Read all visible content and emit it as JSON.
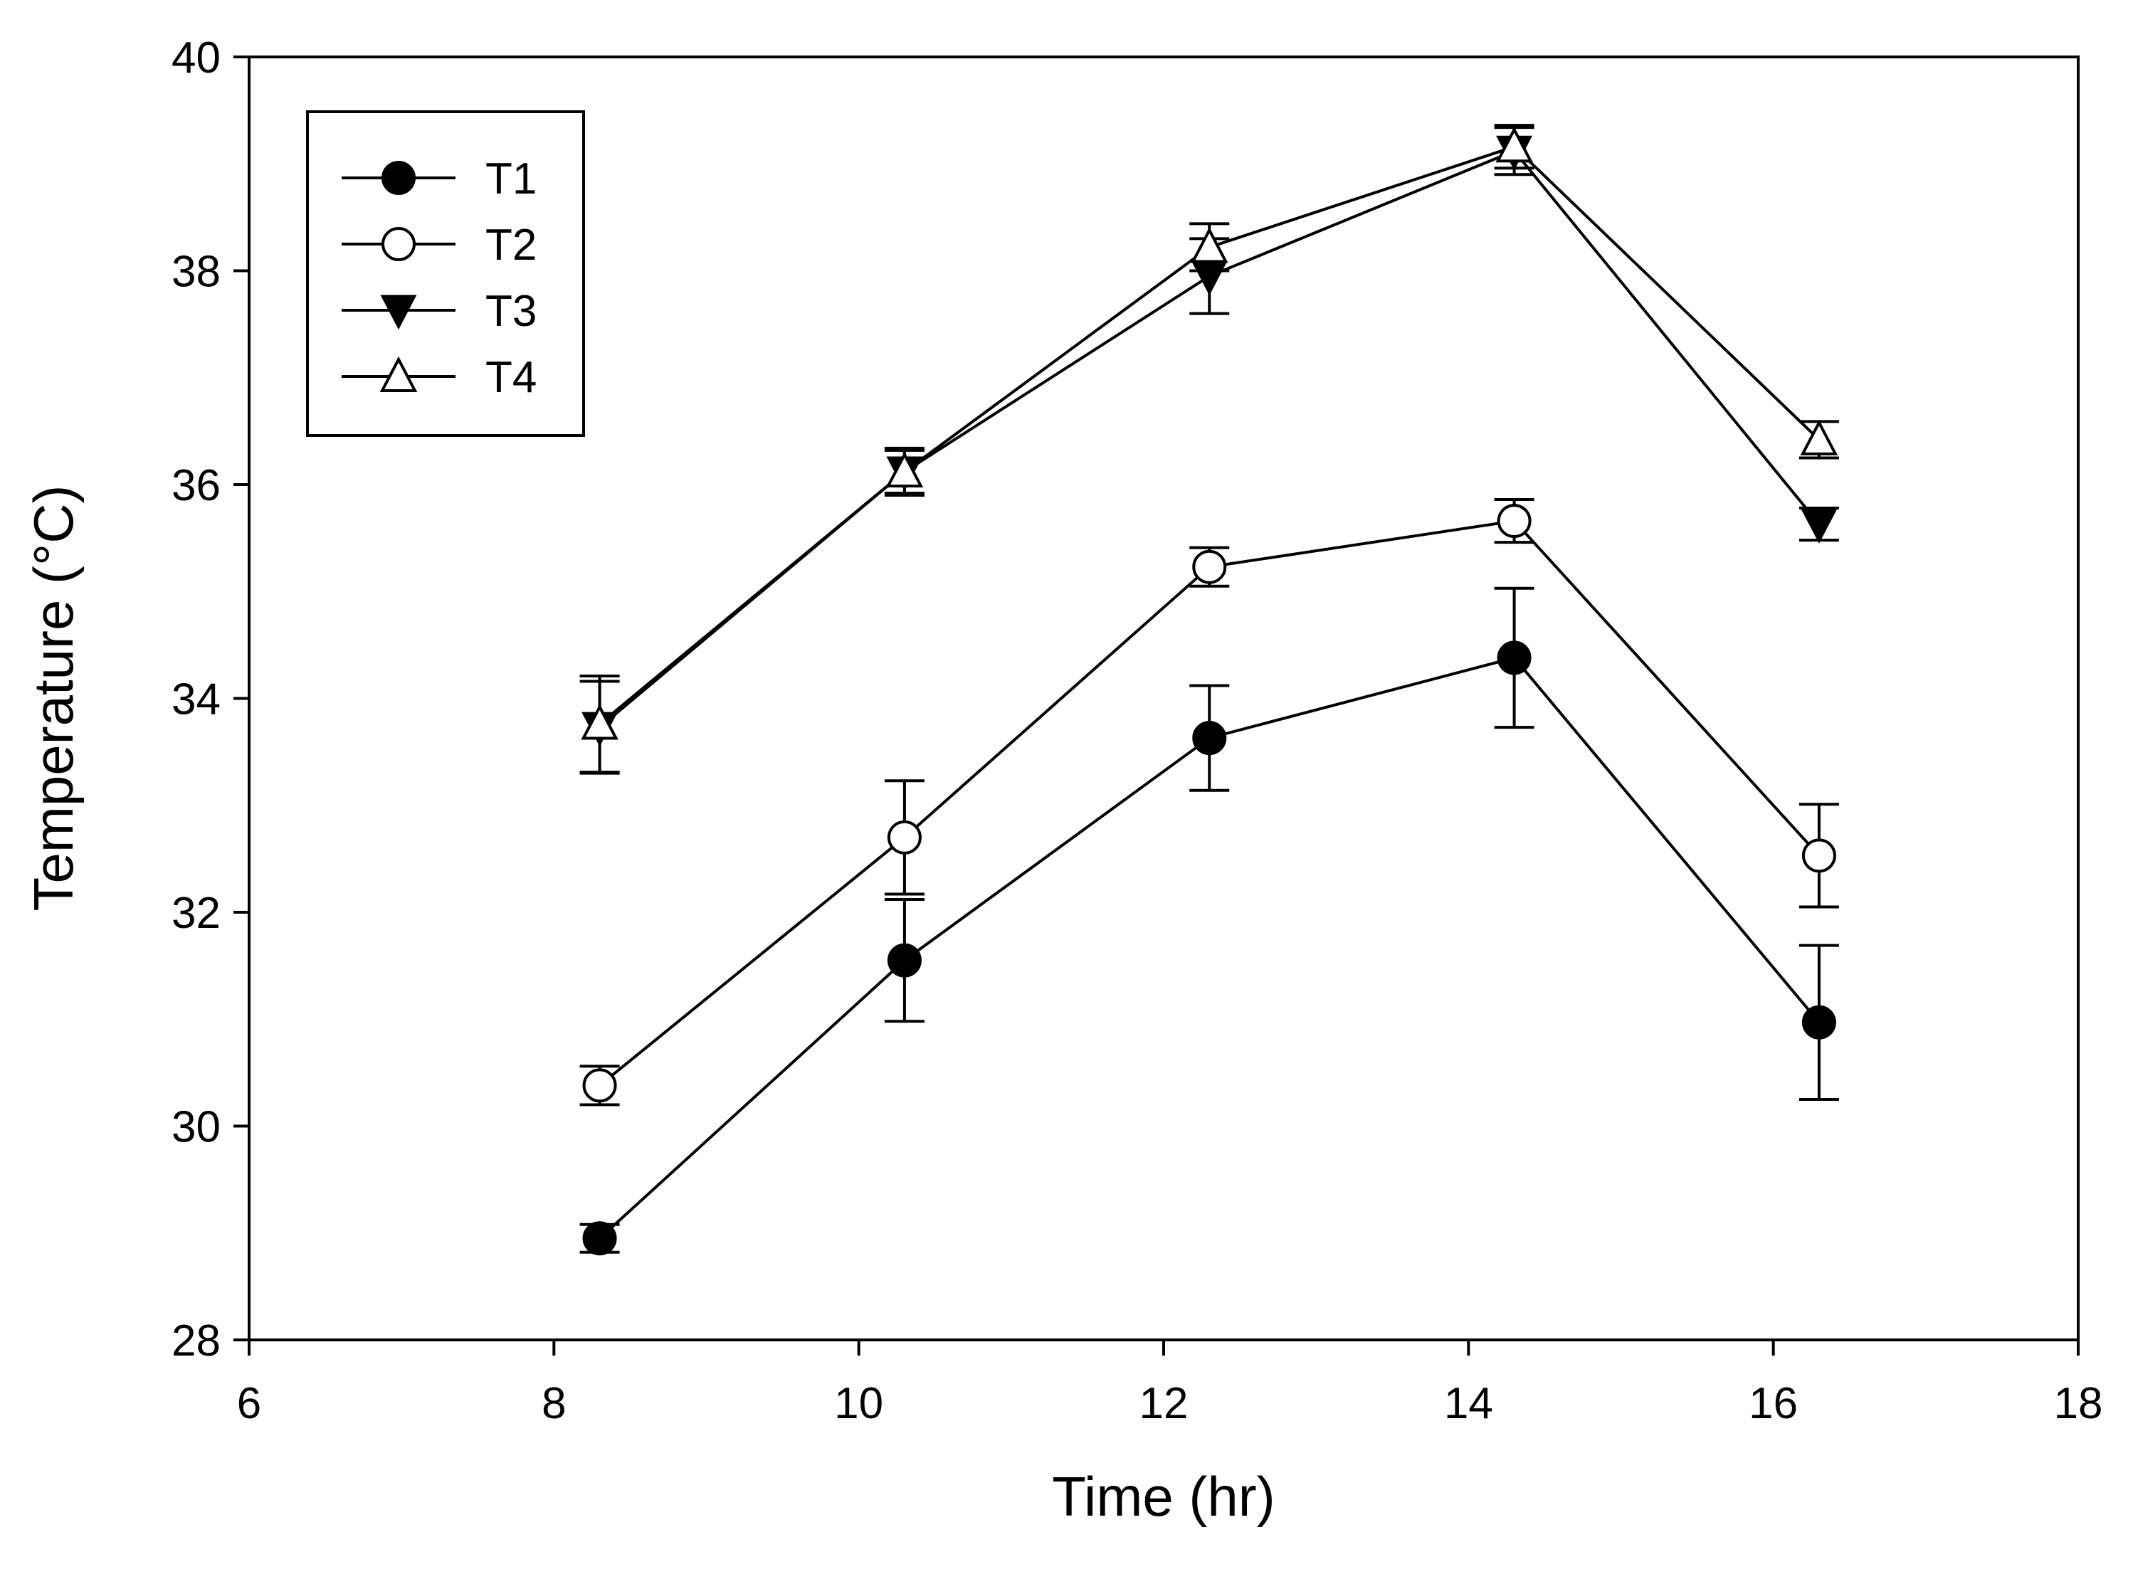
{
  "chart_data": {
    "type": "line",
    "title": "",
    "xlabel": "Time (hr)",
    "ylabel": "Temperature (°C)",
    "xlim": [
      6,
      18
    ],
    "ylim": [
      28,
      40
    ],
    "xticks": [
      6,
      8,
      10,
      12,
      14,
      16,
      18
    ],
    "yticks": [
      28,
      30,
      32,
      34,
      36,
      38,
      40
    ],
    "grid": false,
    "legend_position": "top-left",
    "series": [
      {
        "name": "T1",
        "marker": "filled-circle",
        "x": [
          8.3,
          10.3,
          12.3,
          14.3,
          16.3
        ],
        "y": [
          28.95,
          31.55,
          33.63,
          34.38,
          30.97
        ],
        "err": [
          0.13,
          0.57,
          0.49,
          0.65,
          0.72
        ]
      },
      {
        "name": "T2",
        "marker": "open-circle",
        "x": [
          8.3,
          10.3,
          12.3,
          14.3,
          16.3
        ],
        "y": [
          30.38,
          32.7,
          35.23,
          35.66,
          32.53
        ],
        "err": [
          0.18,
          0.53,
          0.18,
          0.2,
          0.48
        ]
      },
      {
        "name": "T3",
        "marker": "filled-triangle-down",
        "x": [
          8.3,
          10.3,
          12.3,
          14.3,
          16.3
        ],
        "y": [
          33.73,
          36.12,
          37.95,
          39.12,
          35.63
        ],
        "err": [
          0.43,
          0.22,
          0.35,
          0.22,
          0.15
        ]
      },
      {
        "name": "T4",
        "marker": "open-triangle-up",
        "x": [
          8.3,
          10.3,
          12.3,
          14.3,
          16.3
        ],
        "y": [
          33.76,
          36.12,
          38.22,
          39.16,
          36.42
        ],
        "err": [
          0.45,
          0.2,
          0.22,
          0.2,
          0.17
        ]
      }
    ]
  }
}
